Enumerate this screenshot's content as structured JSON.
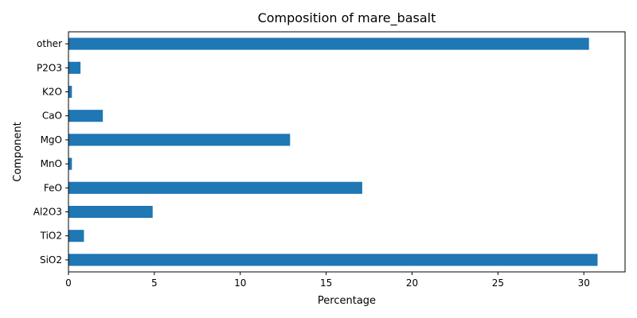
{
  "chart_data": {
    "type": "bar",
    "orientation": "horizontal",
    "title": "Composition of mare_basalt",
    "xlabel": "Percentage",
    "ylabel": "Component",
    "categories": [
      "SiO2",
      "TiO2",
      "Al2O3",
      "FeO",
      "MnO",
      "MgO",
      "CaO",
      "K2O",
      "P2O3",
      "other"
    ],
    "values": [
      30.8,
      0.9,
      4.9,
      17.1,
      0.2,
      12.9,
      2.0,
      0.2,
      0.7,
      30.3
    ],
    "xlim": [
      0,
      32.4
    ],
    "xticks": [
      0,
      5,
      10,
      15,
      20,
      25,
      30
    ],
    "grid": false,
    "bar_color": "#1f77b4"
  }
}
